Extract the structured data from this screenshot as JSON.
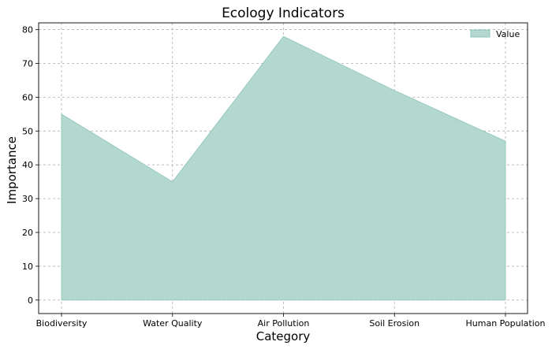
{
  "chart_data": {
    "type": "area",
    "title": "Ecology Indicators",
    "xlabel": "Category",
    "ylabel": "Importance",
    "categories": [
      "Biodiversity",
      "Water Quality",
      "Air Pollution",
      "Soil Erosion",
      "Human Population"
    ],
    "series": [
      {
        "name": "Value",
        "values": [
          55,
          35,
          78,
          62,
          47
        ],
        "color": "#b2d8cf"
      }
    ],
    "ylim": [
      -4,
      82
    ],
    "yticks": [
      0,
      10,
      20,
      30,
      40,
      50,
      60,
      70,
      80
    ],
    "grid": true,
    "legend": "top-right"
  }
}
